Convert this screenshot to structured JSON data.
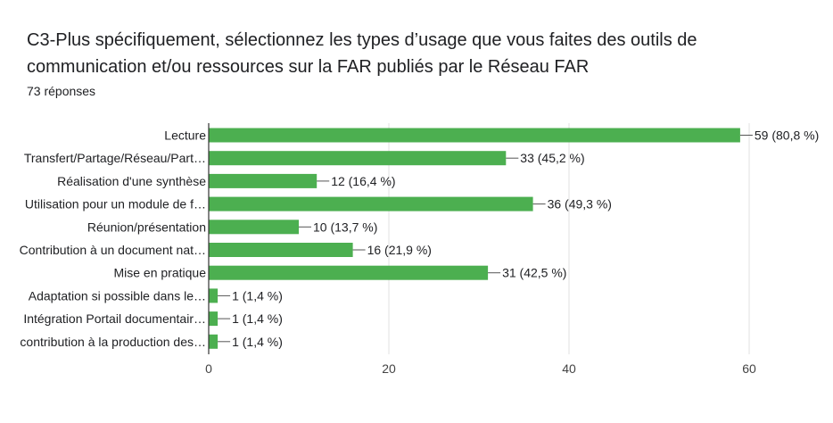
{
  "header": {
    "title": "C3-Plus spécifiquement, sélectionnez les types d’usage que vous faites des outils de communication et/ou ressources sur la FAR publiés par le Réseau FAR",
    "responses": "73 réponses"
  },
  "colors": {
    "bar": "#4caf50",
    "grid": "#e0e0e0",
    "axis": "#333333"
  },
  "chart_data": {
    "type": "bar",
    "orientation": "horizontal",
    "categories": [
      "Lecture",
      "Transfert/Partage/Réseau/Part…",
      "Réalisation d'une synthèse",
      "Utilisation pour un module de f…",
      "Réunion/présentation",
      "Contribution à un document nat…",
      "Mise en pratique",
      "Adaptation si possible dans le…",
      "Intégration Portail documentair…",
      "contribution à la production des…"
    ],
    "values": [
      59,
      33,
      12,
      36,
      10,
      16,
      31,
      1,
      1,
      1
    ],
    "data_labels": [
      "59 (80,8 %)",
      "33 (45,2 %)",
      "12 (16,4 %)",
      "36 (49,3 %)",
      "10 (13,7 %)",
      "16 (21,9 %)",
      "31 (42,5 %)",
      "1 (1,4 %)",
      "1 (1,4 %)",
      "1 (1,4 %)"
    ],
    "xlim": [
      0,
      60
    ],
    "xticks": [
      0,
      20,
      40,
      60
    ],
    "grid": true
  }
}
